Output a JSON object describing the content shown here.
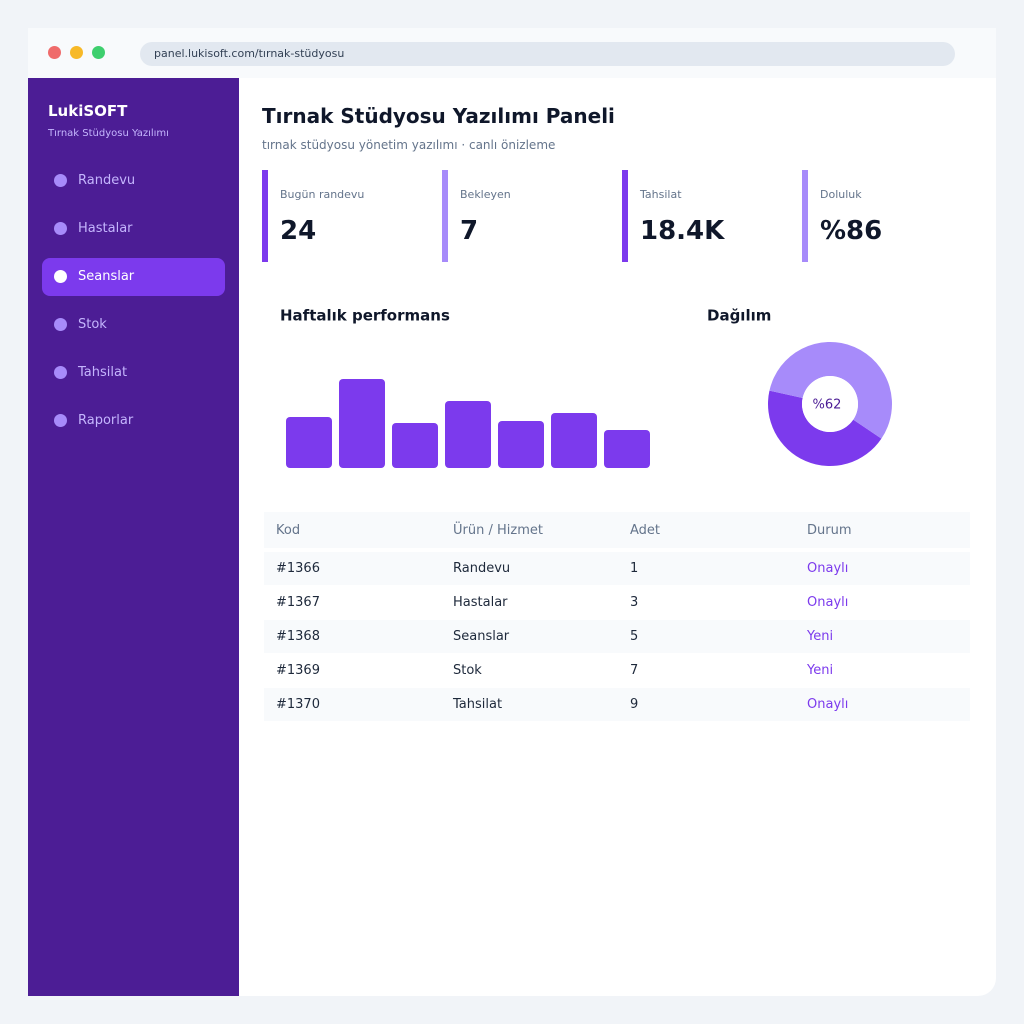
{
  "browser": {
    "url": "panel.lukisoft.com/tırnak-stüdyosu"
  },
  "sidebar": {
    "brand": "LukiSOFT",
    "tagline": "Tırnak Stüdyosu Yazılımı",
    "items": [
      "Randevu",
      "Hastalar",
      "Seanslar",
      "Stok",
      "Tahsilat",
      "Raporlar"
    ],
    "active": 2
  },
  "header": {
    "title": "Tırnak Stüdyosu Yazılımı Paneli",
    "subtitle": "tırnak stüdyosu yönetim yazılımı · canlı önizleme"
  },
  "stats": [
    {
      "label": "Bugün randevu",
      "value": "24"
    },
    {
      "label": "Bekleyen",
      "value": "7"
    },
    {
      "label": "Tahsilat",
      "value": "18.4K"
    },
    {
      "label": "Doluluk",
      "value": "%86"
    }
  ],
  "chart_data": [
    {
      "type": "bar",
      "title": "Haftalık performans",
      "values": [
        51,
        89,
        45,
        67,
        47,
        55,
        38
      ],
      "ylim": [
        0,
        100
      ],
      "color": "#7c3aed"
    },
    {
      "type": "donut",
      "title": "Dağılım",
      "center_label": "%62",
      "values": [
        44,
        56
      ],
      "colors": [
        "#7c3aed",
        "#a78bfa"
      ]
    }
  ],
  "table": {
    "columns": [
      "Kod",
      "Ürün / Hizmet",
      "Adet",
      "Durum"
    ],
    "rows": [
      [
        "#1366",
        "Randevu",
        "1",
        "Onaylı"
      ],
      [
        "#1367",
        "Hastalar",
        "3",
        "Onaylı"
      ],
      [
        "#1368",
        "Seanslar",
        "5",
        "Yeni"
      ],
      [
        "#1369",
        "Stok",
        "7",
        "Yeni"
      ],
      [
        "#1370",
        "Tahsilat",
        "9",
        "Onaylı"
      ]
    ]
  }
}
